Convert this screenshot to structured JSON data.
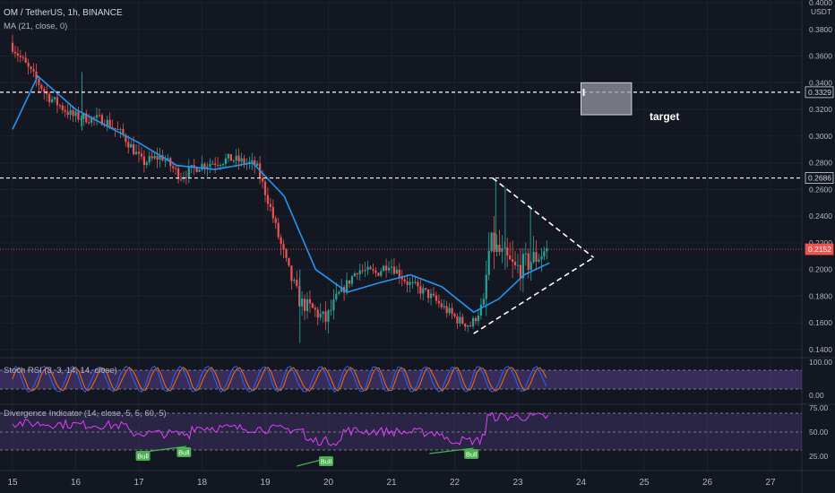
{
  "header": {
    "symbol": "OM / TetherUS, 1h, BINANCE",
    "ma_label": "MA (21, close, 0)",
    "stoch_label": "Stoch RSI (3, 3, 14, 14, close)",
    "div_label": "Divergence Indicator (14, close, 5, 5, 60, 5)",
    "currency": "USDT"
  },
  "price_axis": {
    "ticks": [
      "0.4000",
      "0.3800",
      "0.3600",
      "0.3400",
      "0.3200",
      "0.3000",
      "0.2800",
      "0.2600",
      "0.2400",
      "0.2200",
      "0.2000",
      "0.1800",
      "0.1600",
      "0.1400"
    ],
    "min": 0.13,
    "max": 0.4
  },
  "time_axis": {
    "labels": [
      "15",
      "16",
      "17",
      "18",
      "19",
      "20",
      "21",
      "22",
      "23",
      "24",
      "25",
      "26",
      "27"
    ]
  },
  "levels": [
    {
      "value": 0.3329,
      "label": "0.3329"
    },
    {
      "value": 0.2686,
      "label": "0.2686"
    }
  ],
  "current_price": {
    "value": 0.2152,
    "label": "0.2152"
  },
  "annotations": {
    "target_label": "target",
    "bull_label": "Bull"
  },
  "stoch_axis": {
    "ticks": [
      "100.00",
      "0.00"
    ]
  },
  "div_axis": {
    "ticks": [
      "75.00",
      "50.00",
      "25.00"
    ]
  },
  "colors": {
    "background": "#131722",
    "up": "#26a69a",
    "down": "#ef5350",
    "ma": "#2196f3",
    "stoch_k": "#2962ff",
    "stoch_d": "#ff6d00",
    "stoch_band": "#7e57c2",
    "div_line": "#e040fb",
    "bull": "#4caf50",
    "current_price": "#ef5350"
  },
  "chart_data": {
    "type": "candlestick",
    "title": "OM / TetherUS, 1h, BINANCE",
    "x_start": "15",
    "x_end": "23.5",
    "candle_interval": "1h",
    "price_range": [
      0.13,
      0.4
    ],
    "price_path": [
      {
        "day": 15.0,
        "price": 0.37
      },
      {
        "day": 15.3,
        "price": 0.35
      },
      {
        "day": 15.6,
        "price": 0.33
      },
      {
        "day": 16.0,
        "price": 0.315
      },
      {
        "day": 16.5,
        "price": 0.312
      },
      {
        "day": 16.8,
        "price": 0.3
      },
      {
        "day": 17.1,
        "price": 0.28
      },
      {
        "day": 17.4,
        "price": 0.285
      },
      {
        "day": 17.7,
        "price": 0.27
      },
      {
        "day": 18.0,
        "price": 0.278
      },
      {
        "day": 18.5,
        "price": 0.283
      },
      {
        "day": 18.9,
        "price": 0.278
      },
      {
        "day": 19.1,
        "price": 0.25
      },
      {
        "day": 19.4,
        "price": 0.2
      },
      {
        "day": 19.6,
        "price": 0.175
      },
      {
        "day": 19.8,
        "price": 0.17
      },
      {
        "day": 20.0,
        "price": 0.162
      },
      {
        "day": 20.2,
        "price": 0.18
      },
      {
        "day": 20.5,
        "price": 0.2
      },
      {
        "day": 20.8,
        "price": 0.197
      },
      {
        "day": 21.0,
        "price": 0.205
      },
      {
        "day": 21.3,
        "price": 0.19
      },
      {
        "day": 21.6,
        "price": 0.182
      },
      {
        "day": 21.9,
        "price": 0.17
      },
      {
        "day": 22.1,
        "price": 0.162
      },
      {
        "day": 22.3,
        "price": 0.158
      },
      {
        "day": 22.5,
        "price": 0.175
      },
      {
        "day": 22.6,
        "price": 0.22
      },
      {
        "day": 22.8,
        "price": 0.21
      },
      {
        "day": 23.0,
        "price": 0.2
      },
      {
        "day": 23.2,
        "price": 0.205
      },
      {
        "day": 23.5,
        "price": 0.215
      }
    ],
    "ma_path": [
      {
        "day": 15.0,
        "price": 0.305
      },
      {
        "day": 15.4,
        "price": 0.345
      },
      {
        "day": 16.0,
        "price": 0.32
      },
      {
        "day": 17.0,
        "price": 0.295
      },
      {
        "day": 17.6,
        "price": 0.278
      },
      {
        "day": 18.2,
        "price": 0.275
      },
      {
        "day": 18.8,
        "price": 0.28
      },
      {
        "day": 19.3,
        "price": 0.255
      },
      {
        "day": 19.8,
        "price": 0.2
      },
      {
        "day": 20.3,
        "price": 0.183
      },
      {
        "day": 20.8,
        "price": 0.19
      },
      {
        "day": 21.3,
        "price": 0.196
      },
      {
        "day": 21.8,
        "price": 0.187
      },
      {
        "day": 22.3,
        "price": 0.168
      },
      {
        "day": 22.7,
        "price": 0.178
      },
      {
        "day": 23.1,
        "price": 0.196
      },
      {
        "day": 23.5,
        "price": 0.205
      }
    ],
    "triangle": {
      "upper": [
        [
          22.6,
          0.2686
        ],
        [
          24.2,
          0.209
        ]
      ],
      "lower": [
        [
          22.3,
          0.152
        ],
        [
          24.2,
          0.209
        ]
      ]
    },
    "target_box": {
      "x": [
        24.0,
        24.8
      ],
      "y": [
        0.316,
        0.34
      ],
      "label": "target"
    },
    "divergence_bull_days": [
      17.05,
      17.7,
      19.95,
      22.25
    ],
    "stoch_rsi_range": [
      0,
      100
    ],
    "divergence_range": [
      25,
      75
    ]
  }
}
